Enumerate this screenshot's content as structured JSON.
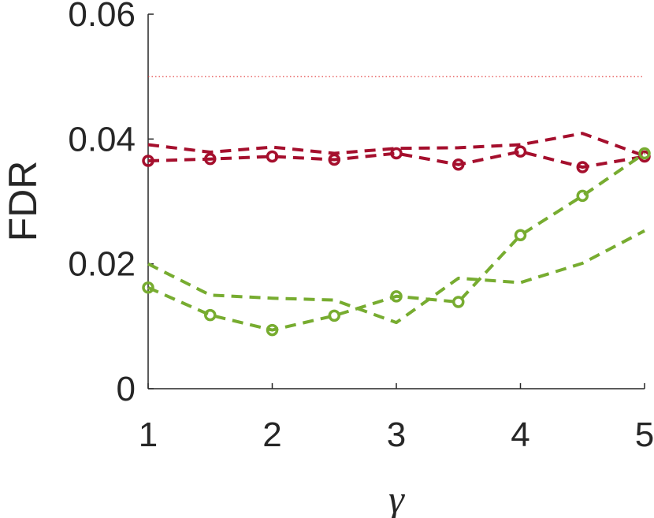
{
  "chart_data": {
    "type": "line",
    "xlabel": "γ",
    "ylabel": "FDR",
    "xlim": [
      1,
      5
    ],
    "ylim": [
      0,
      0.06
    ],
    "xticks": [
      1,
      2,
      3,
      4,
      5
    ],
    "xtick_labels": [
      "1",
      "2",
      "3",
      "4",
      "5"
    ],
    "yticks": [
      0,
      0.02,
      0.04,
      0.06
    ],
    "ytick_labels": [
      "0",
      "0.02",
      "0.04",
      "0.06"
    ],
    "grid": false,
    "x": [
      1,
      1.5,
      2,
      2.5,
      3,
      3.5,
      4,
      4.5,
      5
    ],
    "reference_line": {
      "y": 0.05,
      "color": "#e03030",
      "style": "dotted"
    },
    "series": [
      {
        "color": "#a50f2d",
        "style": "dashed",
        "marker": "none",
        "values": [
          0.0391,
          0.0379,
          0.0387,
          0.0377,
          0.0385,
          0.0386,
          0.0391,
          0.0409,
          0.0373
        ]
      },
      {
        "color": "#a50f2d",
        "style": "dashed",
        "marker": "circle",
        "values": [
          0.0365,
          0.0368,
          0.0372,
          0.0367,
          0.0377,
          0.0359,
          0.038,
          0.0355,
          0.0372
        ]
      },
      {
        "color": "#77ac30",
        "style": "dashed",
        "marker": "none",
        "values": [
          0.02,
          0.015,
          0.0145,
          0.0142,
          0.0106,
          0.0177,
          0.017,
          0.0201,
          0.0253
        ]
      },
      {
        "color": "#77ac30",
        "style": "dashed",
        "marker": "circle",
        "values": [
          0.0162,
          0.0118,
          0.0094,
          0.0117,
          0.0148,
          0.0139,
          0.0246,
          0.0309,
          0.0377
        ]
      }
    ]
  }
}
